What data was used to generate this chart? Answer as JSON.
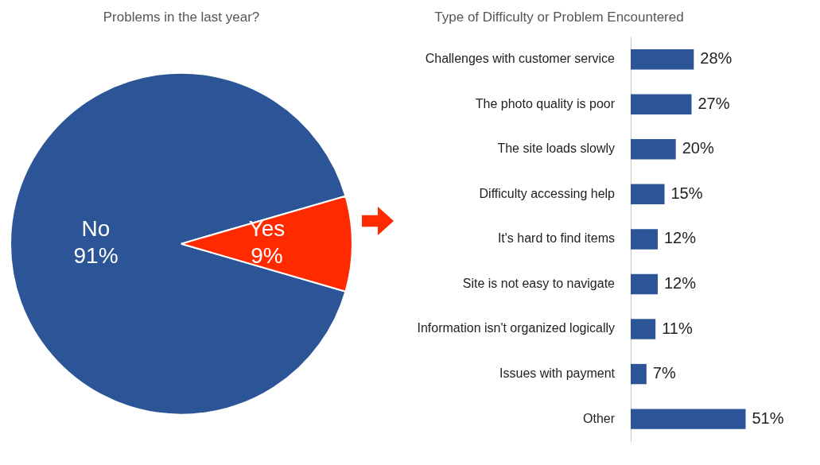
{
  "chart_data": [
    {
      "type": "pie",
      "title": "Problems in the last year?",
      "categories": [
        "No",
        "Yes"
      ],
      "values": [
        91,
        9
      ],
      "colors": [
        "#2b5597",
        "#ff2a00"
      ],
      "value_labels": [
        "91%",
        "9%"
      ],
      "legend": false
    },
    {
      "type": "bar",
      "orientation": "horizontal",
      "tick_labels": "y",
      "title": "Type of Difficulty or Problem Encountered",
      "categories": [
        "Challenges with customer service",
        "The photo quality is poor",
        "The site loads slowly",
        "Difficulty accessing help",
        "It's hard to find items",
        "Site is not easy to navigate",
        "Information isn't organized logically",
        "Issues with payment",
        "Other"
      ],
      "values": [
        28,
        27,
        20,
        15,
        12,
        12,
        11,
        7,
        51
      ],
      "color": "#2b5597",
      "value_labels": [
        "28%",
        "27%",
        "20%",
        "15%",
        "12%",
        "12%",
        "11%",
        "7%",
        "51%"
      ],
      "legend": false
    }
  ]
}
